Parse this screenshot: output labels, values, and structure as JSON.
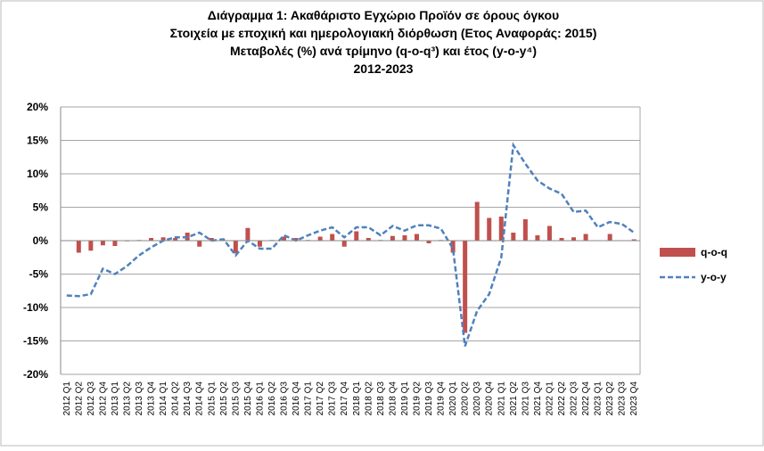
{
  "chart_data": {
    "type": "bar-line",
    "title": [
      "Διάγραμμα 1: Ακαθάριστο Εγχώριο Προϊόν σε όρους όγκου",
      "Στοιχεία με εποχική και ημερολογιακή διόρθωση (Ετος Αναφοράς: 2015)",
      "Μεταβολές (%) ανά τρίμηνο (q-o-q³) και έτος (y-o-y⁴)",
      "2012-2023"
    ],
    "categories": [
      "2012 Q1",
      "2012 Q2",
      "2012 Q3",
      "2012 Q4",
      "2013 Q1",
      "2013 Q2",
      "2013 Q3",
      "2013 Q4",
      "2014 Q1",
      "2014 Q2",
      "2014 Q3",
      "2014 Q4",
      "2015 Q1",
      "2015 Q2",
      "2015 Q3",
      "2015 Q4",
      "2016 Q1",
      "2016 Q2",
      "2016 Q3",
      "2016 Q4",
      "2017 Q1",
      "2017 Q2",
      "2017 Q3",
      "2017 Q4",
      "2018 Q1",
      "2018 Q2",
      "2018 Q3",
      "2018 Q4",
      "2019 Q1",
      "2019 Q2",
      "2019 Q3",
      "2019 Q4",
      "2020 Q1",
      "2020 Q2",
      "2020 Q3",
      "2020 Q4",
      "2021 Q1",
      "2021 Q2",
      "2021 Q3",
      "2021 Q4",
      "2022 Q1",
      "2022 Q2",
      "2022 Q3",
      "2022 Q4",
      "2023 Q1",
      "2023 Q2",
      "2023 Q3",
      "2023 Q4"
    ],
    "series": [
      {
        "name": "q-o-q",
        "kind": "bar",
        "color": "#c0504d",
        "values": [
          0,
          -1.8,
          -1.5,
          -0.7,
          -0.8,
          -0.1,
          0.1,
          0.4,
          0.5,
          0.4,
          1.2,
          -0.9,
          0.4,
          0.1,
          -1.9,
          1.9,
          -0.9,
          0.1,
          0.6,
          0.4,
          0.1,
          0.6,
          1.0,
          -0.9,
          1.4,
          0.4,
          0.1,
          0.7,
          0.8,
          1.0,
          -0.4,
          0.1,
          -1.8,
          -13.8,
          5.8,
          3.4,
          3.6,
          1.2,
          3.2,
          0.8,
          2.2,
          0.4,
          0.5,
          1.0,
          0.0,
          1.0,
          0.0,
          0.2
        ]
      },
      {
        "name": "y-o-y",
        "kind": "line",
        "color": "#4f81bd",
        "values": [
          -8.2,
          -8.3,
          -8.0,
          -4.2,
          -5.0,
          -3.8,
          -2.2,
          -1.0,
          0.0,
          0.5,
          0.5,
          1.2,
          0.0,
          0.2,
          -2.2,
          0.0,
          -1.2,
          -1.2,
          0.8,
          0.0,
          0.8,
          1.5,
          2.0,
          0.5,
          2.0,
          2.0,
          0.8,
          2.2,
          1.5,
          2.3,
          2.3,
          1.8,
          -1.2,
          -15.8,
          -10.5,
          -8.0,
          -2.5,
          14.3,
          11.5,
          9.0,
          7.8,
          7.0,
          4.3,
          4.5,
          2.0,
          2.8,
          2.5,
          1.2
        ]
      }
    ],
    "ylim": [
      -20,
      20
    ],
    "yticks": [
      {
        "value": -20,
        "label": "-20%"
      },
      {
        "value": -15,
        "label": "-15%"
      },
      {
        "value": -10,
        "label": "-10%"
      },
      {
        "value": -5,
        "label": "-5%"
      },
      {
        "value": 0,
        "label": "0%"
      },
      {
        "value": 5,
        "label": "5%"
      },
      {
        "value": 10,
        "label": "10%"
      },
      {
        "value": 15,
        "label": "15%"
      },
      {
        "value": 20,
        "label": "20%"
      }
    ],
    "grid": true,
    "legend": "right"
  }
}
